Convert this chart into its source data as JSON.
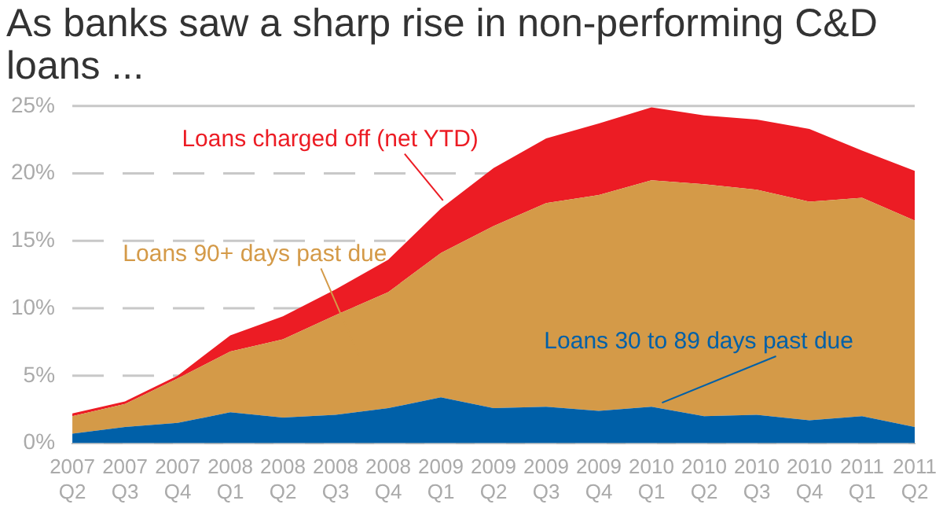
{
  "chart_data": {
    "type": "area",
    "title": "As banks saw a sharp rise in non-performing C&D loans ...",
    "stacked": true,
    "categories": [
      "2007 Q2",
      "2007 Q3",
      "2007 Q4",
      "2008 Q1",
      "2008 Q2",
      "2008 Q3",
      "2008 Q4",
      "2009 Q1",
      "2009 Q2",
      "2009 Q3",
      "2009 Q4",
      "2010 Q1",
      "2010 Q2",
      "2010 Q3",
      "2010 Q4",
      "2011 Q1",
      "2011 Q2"
    ],
    "series": [
      {
        "name": "Loans 30 to 89 days past due",
        "color": "#0060a8",
        "values": [
          0.7,
          1.2,
          1.5,
          2.3,
          1.9,
          2.1,
          2.6,
          3.4,
          2.6,
          2.7,
          2.4,
          2.7,
          2.0,
          2.1,
          1.7,
          2.0,
          1.2
        ]
      },
      {
        "name": "Loans 90+ days past due",
        "color": "#d49a48",
        "values": [
          1.3,
          1.7,
          3.3,
          4.5,
          5.8,
          7.4,
          8.6,
          10.7,
          13.5,
          15.1,
          16.0,
          16.8,
          17.2,
          16.7,
          16.2,
          16.2,
          15.3
        ]
      },
      {
        "name": "Loans charged off (net YTD)",
        "color": "#ec1c24",
        "values": [
          0.2,
          0.2,
          0.2,
          1.2,
          1.7,
          1.9,
          2.4,
          3.3,
          4.3,
          4.8,
          5.3,
          5.4,
          5.1,
          5.2,
          5.4,
          3.5,
          3.7
        ]
      }
    ],
    "ylim": [
      0,
      25
    ],
    "yticks": [
      {
        "value": 0,
        "label": "0%"
      },
      {
        "value": 5,
        "label": "5%"
      },
      {
        "value": 10,
        "label": "10%"
      },
      {
        "value": 15,
        "label": "15%"
      },
      {
        "value": 20,
        "label": "20%"
      },
      {
        "value": 25,
        "label": "25%"
      }
    ],
    "grid": "y",
    "legend": false
  }
}
